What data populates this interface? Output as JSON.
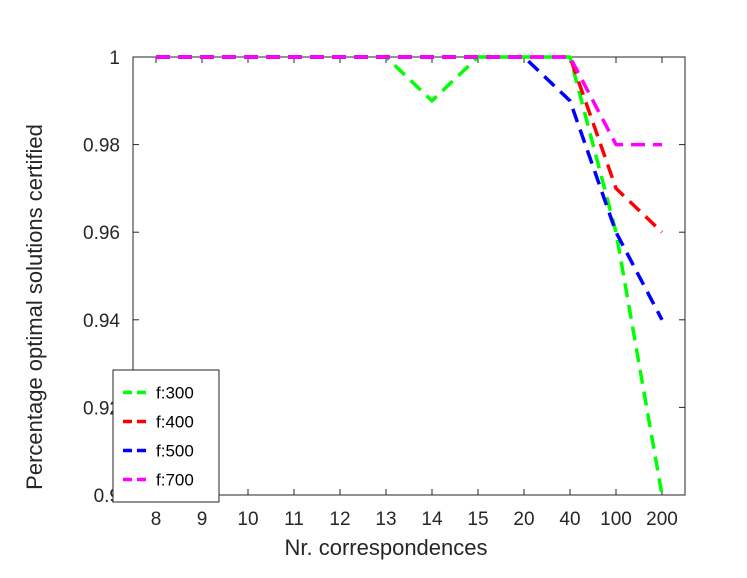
{
  "chart_data": {
    "type": "line",
    "title": "",
    "xlabel": "Nr. correspondences",
    "ylabel": "Percentage optimal solutions certified",
    "categories": [
      "8",
      "9",
      "10",
      "11",
      "12",
      "13",
      "14",
      "15",
      "20",
      "40",
      "100",
      "200"
    ],
    "ylim": [
      0.9,
      1
    ],
    "yticks": [
      "0.9",
      "0.92",
      "0.94",
      "0.96",
      "0.98",
      "1"
    ],
    "grid": false,
    "legend_position": "bottom-left",
    "series": [
      {
        "name": "f:300",
        "color": "#00ff00",
        "values": [
          1,
          1,
          1,
          1,
          1,
          1,
          0.99,
          1,
          1,
          1,
          0.96,
          0.9
        ]
      },
      {
        "name": "f:400",
        "color": "#ff0000",
        "values": [
          1,
          1,
          1,
          1,
          1,
          1,
          1,
          1,
          1,
          1,
          0.97,
          0.96
        ]
      },
      {
        "name": "f:500",
        "color": "#0000ff",
        "values": [
          1,
          1,
          1,
          1,
          1,
          1,
          1,
          1,
          1,
          0.99,
          0.96,
          0.94
        ]
      },
      {
        "name": "f:700",
        "color": "#ff00ff",
        "values": [
          1,
          1,
          1,
          1,
          1,
          1,
          1,
          1,
          1,
          1,
          0.98,
          0.98
        ]
      }
    ]
  }
}
